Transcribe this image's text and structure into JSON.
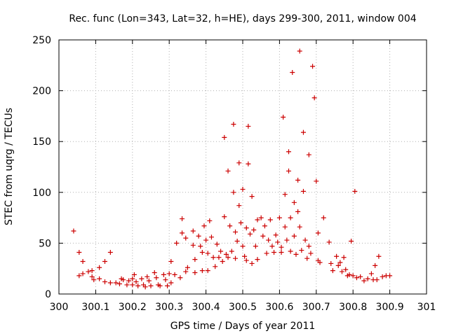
{
  "chart_data": {
    "type": "scatter",
    "title": "Rec. func (Lon=343, Lat=32, h=HE), days 299-300, 2011, window 004",
    "xlabel": "GPS time / Days of year 2011",
    "ylabel": "STEC from uqrg / TECUs",
    "xlim": [
      300,
      301
    ],
    "ylim": [
      0,
      250
    ],
    "xticks": [
      "300",
      "300.1",
      "300.2",
      "300.3",
      "300.4",
      "300.5",
      "300.6",
      "300.7",
      "300.8",
      "300.9",
      "301"
    ],
    "yticks": [
      "0",
      "50",
      "100",
      "150",
      "200",
      "250"
    ],
    "grid": true,
    "marker": "+",
    "color": "#cc0000",
    "series": [
      {
        "name": "STEC",
        "points": [
          [
            300.04,
            62
          ],
          [
            300.055,
            41
          ],
          [
            300.055,
            18
          ],
          [
            300.065,
            32
          ],
          [
            300.065,
            20
          ],
          [
            300.08,
            22
          ],
          [
            300.09,
            23
          ],
          [
            300.09,
            17
          ],
          [
            300.095,
            14
          ],
          [
            300.11,
            26
          ],
          [
            300.11,
            15
          ],
          [
            300.125,
            32
          ],
          [
            300.125,
            12
          ],
          [
            300.14,
            41
          ],
          [
            300.14,
            11
          ],
          [
            300.155,
            11
          ],
          [
            300.165,
            10
          ],
          [
            300.17,
            15
          ],
          [
            300.175,
            14
          ],
          [
            300.185,
            9
          ],
          [
            300.19,
            13
          ],
          [
            300.2,
            15
          ],
          [
            300.2,
            9
          ],
          [
            300.205,
            19
          ],
          [
            300.21,
            12
          ],
          [
            300.215,
            8
          ],
          [
            300.225,
            15
          ],
          [
            300.23,
            9
          ],
          [
            300.235,
            7
          ],
          [
            300.24,
            17
          ],
          [
            300.245,
            13
          ],
          [
            300.25,
            8
          ],
          [
            300.26,
            21
          ],
          [
            300.265,
            16
          ],
          [
            300.27,
            9
          ],
          [
            300.275,
            8
          ],
          [
            300.285,
            19
          ],
          [
            300.29,
            14
          ],
          [
            300.295,
            8
          ],
          [
            300.3,
            20
          ],
          [
            300.305,
            32
          ],
          [
            300.305,
            11
          ],
          [
            300.315,
            19
          ],
          [
            300.32,
            50
          ],
          [
            300.33,
            16
          ],
          [
            300.335,
            74
          ],
          [
            300.335,
            60
          ],
          [
            300.345,
            55
          ],
          [
            300.345,
            22
          ],
          [
            300.35,
            26
          ],
          [
            300.365,
            62
          ],
          [
            300.365,
            48
          ],
          [
            300.37,
            34
          ],
          [
            300.37,
            21
          ],
          [
            300.38,
            57
          ],
          [
            300.385,
            47
          ],
          [
            300.39,
            41
          ],
          [
            300.39,
            23
          ],
          [
            300.395,
            67
          ],
          [
            300.4,
            53
          ],
          [
            300.405,
            40
          ],
          [
            300.405,
            23
          ],
          [
            300.41,
            72
          ],
          [
            300.415,
            56
          ],
          [
            300.42,
            36
          ],
          [
            300.425,
            27
          ],
          [
            300.43,
            49
          ],
          [
            300.435,
            36
          ],
          [
            300.44,
            42
          ],
          [
            300.445,
            32
          ],
          [
            300.45,
            154
          ],
          [
            300.45,
            76
          ],
          [
            300.455,
            39
          ],
          [
            300.46,
            121
          ],
          [
            300.46,
            36
          ],
          [
            300.465,
            67
          ],
          [
            300.47,
            42
          ],
          [
            300.475,
            167
          ],
          [
            300.475,
            100
          ],
          [
            300.48,
            61
          ],
          [
            300.48,
            35
          ],
          [
            300.485,
            52
          ],
          [
            300.49,
            129
          ],
          [
            300.49,
            87
          ],
          [
            300.495,
            70
          ],
          [
            300.5,
            103
          ],
          [
            300.5,
            47
          ],
          [
            300.505,
            37
          ],
          [
            300.51,
            65
          ],
          [
            300.51,
            33
          ],
          [
            300.515,
            165
          ],
          [
            300.515,
            128
          ],
          [
            300.52,
            59
          ],
          [
            300.525,
            96
          ],
          [
            300.525,
            30
          ],
          [
            300.53,
            63
          ],
          [
            300.535,
            47
          ],
          [
            300.54,
            73
          ],
          [
            300.54,
            34
          ],
          [
            300.55,
            75
          ],
          [
            300.555,
            57
          ],
          [
            300.56,
            67
          ],
          [
            300.565,
            40
          ],
          [
            300.57,
            53
          ],
          [
            300.575,
            73
          ],
          [
            300.58,
            47
          ],
          [
            300.585,
            41
          ],
          [
            300.59,
            58
          ],
          [
            300.595,
            51
          ],
          [
            300.6,
            75
          ],
          [
            300.605,
            46
          ],
          [
            300.605,
            41
          ],
          [
            300.61,
            174
          ],
          [
            300.615,
            98
          ],
          [
            300.615,
            66
          ],
          [
            300.62,
            53
          ],
          [
            300.625,
            140
          ],
          [
            300.625,
            121
          ],
          [
            300.63,
            75
          ],
          [
            300.63,
            42
          ],
          [
            300.635,
            218
          ],
          [
            300.64,
            90
          ],
          [
            300.64,
            57
          ],
          [
            300.645,
            39
          ],
          [
            300.65,
            112
          ],
          [
            300.65,
            81
          ],
          [
            300.655,
            239
          ],
          [
            300.655,
            66
          ],
          [
            300.66,
            43
          ],
          [
            300.665,
            159
          ],
          [
            300.665,
            101
          ],
          [
            300.67,
            53
          ],
          [
            300.675,
            35
          ],
          [
            300.68,
            137
          ],
          [
            300.68,
            47
          ],
          [
            300.685,
            40
          ],
          [
            300.69,
            224
          ],
          [
            300.695,
            193
          ],
          [
            300.7,
            111
          ],
          [
            300.705,
            60
          ],
          [
            300.705,
            33
          ],
          [
            300.71,
            31
          ],
          [
            300.72,
            75
          ],
          [
            300.735,
            51
          ],
          [
            300.74,
            30
          ],
          [
            300.745,
            23
          ],
          [
            300.755,
            37
          ],
          [
            300.76,
            28
          ],
          [
            300.765,
            31
          ],
          [
            300.77,
            22
          ],
          [
            300.775,
            36
          ],
          [
            300.78,
            24
          ],
          [
            300.785,
            18
          ],
          [
            300.79,
            19
          ],
          [
            300.795,
            52
          ],
          [
            300.8,
            18
          ],
          [
            300.805,
            101
          ],
          [
            300.81,
            16
          ],
          [
            300.82,
            17
          ],
          [
            300.83,
            13
          ],
          [
            300.84,
            15
          ],
          [
            300.85,
            20
          ],
          [
            300.855,
            14
          ],
          [
            300.86,
            28
          ],
          [
            300.865,
            14
          ],
          [
            300.87,
            37
          ],
          [
            300.88,
            17
          ],
          [
            300.89,
            18
          ],
          [
            300.9,
            18
          ]
        ]
      }
    ]
  }
}
